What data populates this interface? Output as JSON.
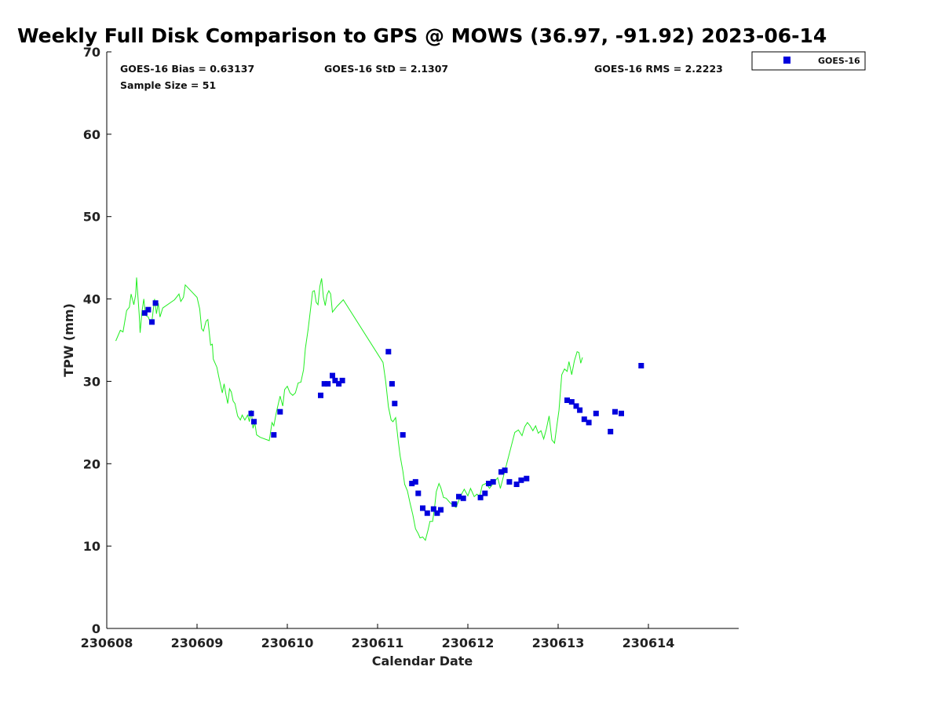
{
  "chart_data": {
    "type": "scatter",
    "title": "Weekly Full Disk Comparison to GPS @ MOWS (36.97, -91.92) 2023-06-14",
    "xlabel": "Calendar Date",
    "ylabel": "TPW (mm)",
    "xlim": [
      "230608",
      "230615"
    ],
    "ylim": [
      0,
      70
    ],
    "x_ticks": [
      "230608",
      "230609",
      "230610",
      "230611",
      "230612",
      "230613",
      "230614"
    ],
    "y_ticks": [
      0,
      10,
      20,
      30,
      40,
      50,
      60,
      70
    ],
    "grid": false,
    "legend_position": "top-right, outside plot",
    "stats": {
      "bias": "GOES-16 Bias = 0.63137",
      "std": "GOES-16 StD = 2.1307",
      "rms": "GOES-16 RMS = 2.2223",
      "sample": "Sample Size = 51"
    },
    "gps_line": {
      "color": "#22ee22",
      "points": [
        [
          8.1,
          34.9
        ],
        [
          8.15,
          36.2
        ],
        [
          8.18,
          36.0
        ],
        [
          8.22,
          38.6
        ],
        [
          8.25,
          39.0
        ],
        [
          8.27,
          40.6
        ],
        [
          8.3,
          39.3
        ],
        [
          8.32,
          40.5
        ],
        [
          8.33,
          42.6
        ],
        [
          8.36,
          38.0
        ],
        [
          8.37,
          35.9
        ],
        [
          8.39,
          38.5
        ],
        [
          8.41,
          40.0
        ],
        [
          8.43,
          38.0
        ],
        [
          8.46,
          37.8
        ],
        [
          8.48,
          37.2
        ],
        [
          8.5,
          37.3
        ],
        [
          8.53,
          40.0
        ],
        [
          8.55,
          38.2
        ],
        [
          8.57,
          39.5
        ],
        [
          8.59,
          37.8
        ],
        [
          8.62,
          38.9
        ],
        [
          8.75,
          39.9
        ],
        [
          8.8,
          40.6
        ],
        [
          8.82,
          39.7
        ],
        [
          8.85,
          40.2
        ],
        [
          8.87,
          41.7
        ],
        [
          9.0,
          40.2
        ],
        [
          9.03,
          38.8
        ],
        [
          9.05,
          36.4
        ],
        [
          9.07,
          36.1
        ],
        [
          9.1,
          37.3
        ],
        [
          9.12,
          37.5
        ],
        [
          9.15,
          34.4
        ],
        [
          9.17,
          34.5
        ],
        [
          9.18,
          32.7
        ],
        [
          9.22,
          31.7
        ],
        [
          9.24,
          30.6
        ],
        [
          9.28,
          28.6
        ],
        [
          9.3,
          29.7
        ],
        [
          9.32,
          28.4
        ],
        [
          9.34,
          27.3
        ],
        [
          9.36,
          29.1
        ],
        [
          9.38,
          28.7
        ],
        [
          9.4,
          27.6
        ],
        [
          9.42,
          27.3
        ],
        [
          9.45,
          25.8
        ],
        [
          9.48,
          25.3
        ],
        [
          9.5,
          25.9
        ],
        [
          9.53,
          25.3
        ],
        [
          9.56,
          25.9
        ],
        [
          9.58,
          25.1
        ],
        [
          9.6,
          26.5
        ],
        [
          9.62,
          24.3
        ],
        [
          9.64,
          25.0
        ],
        [
          9.66,
          23.5
        ],
        [
          9.7,
          23.2
        ],
        [
          9.8,
          22.8
        ],
        [
          9.83,
          25.0
        ],
        [
          9.85,
          24.6
        ],
        [
          9.88,
          26.3
        ],
        [
          9.92,
          28.2
        ],
        [
          9.95,
          27.0
        ],
        [
          9.97,
          29.0
        ],
        [
          10.0,
          29.4
        ],
        [
          10.03,
          28.6
        ],
        [
          10.06,
          28.3
        ],
        [
          10.09,
          28.6
        ],
        [
          10.12,
          29.8
        ],
        [
          10.15,
          29.9
        ],
        [
          10.18,
          31.4
        ],
        [
          10.2,
          34.0
        ],
        [
          10.23,
          36.3
        ],
        [
          10.26,
          39.0
        ],
        [
          10.28,
          40.9
        ],
        [
          10.3,
          41.0
        ],
        [
          10.32,
          39.6
        ],
        [
          10.34,
          39.3
        ],
        [
          10.36,
          41.5
        ],
        [
          10.38,
          42.5
        ],
        [
          10.4,
          40.2
        ],
        [
          10.42,
          39.2
        ],
        [
          10.44,
          40.5
        ],
        [
          10.46,
          41.0
        ],
        [
          10.48,
          40.6
        ],
        [
          10.5,
          38.4
        ],
        [
          10.55,
          39.1
        ],
        [
          10.62,
          39.9
        ],
        [
          11.06,
          32.3
        ],
        [
          11.09,
          30.0
        ],
        [
          11.12,
          26.9
        ],
        [
          11.15,
          25.3
        ],
        [
          11.17,
          25.1
        ],
        [
          11.2,
          25.6
        ],
        [
          11.23,
          22.6
        ],
        [
          11.25,
          20.9
        ],
        [
          11.28,
          19.1
        ],
        [
          11.3,
          17.5
        ],
        [
          11.33,
          16.7
        ],
        [
          11.36,
          15.2
        ],
        [
          11.39,
          13.8
        ],
        [
          11.42,
          12.1
        ],
        [
          11.45,
          11.5
        ],
        [
          11.47,
          11.0
        ],
        [
          11.5,
          11.1
        ],
        [
          11.53,
          10.7
        ],
        [
          11.56,
          12.0
        ],
        [
          11.58,
          13.0
        ],
        [
          11.61,
          13.0
        ],
        [
          11.63,
          14.6
        ],
        [
          11.65,
          16.6
        ],
        [
          11.68,
          17.6
        ],
        [
          11.7,
          17.1
        ],
        [
          11.73,
          15.9
        ],
        [
          11.76,
          15.8
        ],
        [
          11.8,
          15.3
        ],
        [
          11.84,
          14.9
        ],
        [
          11.87,
          14.7
        ],
        [
          11.92,
          16.1
        ],
        [
          11.96,
          16.9
        ],
        [
          12.0,
          16.1
        ],
        [
          12.03,
          17.0
        ],
        [
          12.07,
          16.0
        ],
        [
          12.1,
          16.3
        ],
        [
          12.13,
          16.0
        ],
        [
          12.16,
          17.4
        ],
        [
          12.2,
          17.6
        ],
        [
          12.24,
          17.0
        ],
        [
          12.28,
          17.6
        ],
        [
          12.33,
          18.3
        ],
        [
          12.36,
          17.0
        ],
        [
          12.52,
          23.8
        ],
        [
          12.56,
          24.1
        ],
        [
          12.6,
          23.4
        ],
        [
          12.63,
          24.5
        ],
        [
          12.66,
          25.0
        ],
        [
          12.69,
          24.6
        ],
        [
          12.72,
          24.0
        ],
        [
          12.75,
          24.6
        ],
        [
          12.78,
          23.7
        ],
        [
          12.81,
          24.0
        ],
        [
          12.84,
          23.0
        ],
        [
          12.87,
          24.2
        ],
        [
          12.9,
          25.8
        ],
        [
          12.93,
          22.9
        ],
        [
          12.96,
          22.5
        ],
        [
          12.99,
          25.0
        ],
        [
          13.01,
          26.5
        ],
        [
          13.04,
          30.8
        ],
        [
          13.07,
          31.5
        ],
        [
          13.1,
          31.2
        ],
        [
          13.12,
          32.4
        ],
        [
          13.15,
          30.8
        ],
        [
          13.18,
          32.5
        ],
        [
          13.21,
          33.6
        ],
        [
          13.23,
          33.5
        ],
        [
          13.25,
          32.2
        ],
        [
          13.27,
          32.9
        ]
      ]
    },
    "series": [
      {
        "name": "GOES-16",
        "color": "#0000dd",
        "points": [
          [
            8.42,
            38.3
          ],
          [
            8.46,
            38.7
          ],
          [
            8.5,
            37.2
          ],
          [
            8.54,
            39.5
          ],
          [
            9.6,
            26.1
          ],
          [
            9.63,
            25.1
          ],
          [
            9.85,
            23.5
          ],
          [
            9.92,
            26.3
          ],
          [
            10.37,
            28.3
          ],
          [
            10.41,
            29.7
          ],
          [
            10.45,
            29.7
          ],
          [
            10.5,
            30.7
          ],
          [
            10.53,
            30.1
          ],
          [
            10.57,
            29.7
          ],
          [
            10.61,
            30.1
          ],
          [
            11.12,
            33.6
          ],
          [
            11.16,
            29.7
          ],
          [
            11.19,
            27.3
          ],
          [
            11.28,
            23.5
          ],
          [
            11.38,
            17.6
          ],
          [
            11.42,
            17.8
          ],
          [
            11.45,
            16.4
          ],
          [
            11.5,
            14.6
          ],
          [
            11.55,
            14.0
          ],
          [
            11.62,
            14.5
          ],
          [
            11.66,
            14.0
          ],
          [
            11.7,
            14.4
          ],
          [
            11.85,
            15.1
          ],
          [
            11.9,
            16.0
          ],
          [
            11.95,
            15.8
          ],
          [
            12.14,
            15.9
          ],
          [
            12.19,
            16.4
          ],
          [
            12.23,
            17.6
          ],
          [
            12.28,
            17.8
          ],
          [
            12.37,
            19.0
          ],
          [
            12.41,
            19.2
          ],
          [
            12.46,
            17.8
          ],
          [
            12.54,
            17.5
          ],
          [
            12.59,
            18.0
          ],
          [
            12.65,
            18.2
          ],
          [
            13.1,
            27.7
          ],
          [
            13.15,
            27.5
          ],
          [
            13.2,
            27.0
          ],
          [
            13.24,
            26.5
          ],
          [
            13.29,
            25.4
          ],
          [
            13.34,
            25.0
          ],
          [
            13.42,
            26.1
          ],
          [
            13.58,
            23.9
          ],
          [
            13.63,
            26.3
          ],
          [
            13.7,
            26.1
          ],
          [
            13.92,
            31.9
          ]
        ]
      }
    ]
  }
}
